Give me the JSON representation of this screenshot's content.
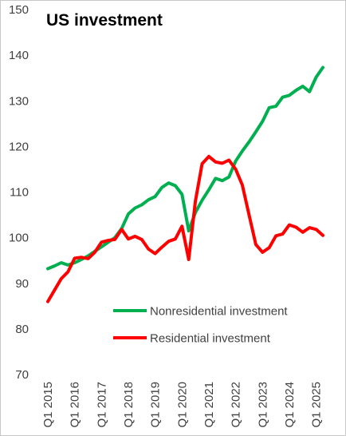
{
  "chart_data": {
    "type": "line",
    "title": "US investment",
    "xlabel": "",
    "ylabel": "",
    "ylim": [
      70,
      150
    ],
    "y_ticks": [
      70,
      80,
      90,
      100,
      110,
      120,
      130,
      140,
      150
    ],
    "grid": false,
    "legend_position": "lower-center",
    "x_tick_labels": [
      "Q1 2015",
      "Q1 2016",
      "Q1 2017",
      "Q1 2018",
      "Q1 2019",
      "Q1 2020",
      "Q1 2021",
      "Q1 2022",
      "Q1 2023",
      "Q1 2024",
      "Q1 2025"
    ],
    "x": [
      "Q1 2015",
      "Q2 2015",
      "Q3 2015",
      "Q4 2015",
      "Q1 2016",
      "Q2 2016",
      "Q3 2016",
      "Q4 2016",
      "Q1 2017",
      "Q2 2017",
      "Q3 2017",
      "Q4 2017",
      "Q1 2018",
      "Q2 2018",
      "Q3 2018",
      "Q4 2018",
      "Q1 2019",
      "Q2 2019",
      "Q3 2019",
      "Q4 2019",
      "Q1 2020",
      "Q2 2020",
      "Q3 2020",
      "Q4 2020",
      "Q1 2021",
      "Q2 2021",
      "Q3 2021",
      "Q4 2021",
      "Q1 2022",
      "Q2 2022",
      "Q3 2022",
      "Q4 2022",
      "Q1 2023",
      "Q2 2023",
      "Q3 2023",
      "Q4 2023",
      "Q1 2024",
      "Q2 2024",
      "Q3 2024",
      "Q4 2024",
      "Q1 2025",
      "Q2 2025"
    ],
    "series": [
      {
        "name": "Nonresidential investment",
        "color": "#00b050",
        "values": [
          93.2,
          93.8,
          94.5,
          94.0,
          94.5,
          95.2,
          96.0,
          97.0,
          98.0,
          99.0,
          100.0,
          102.0,
          105.2,
          106.5,
          107.2,
          108.3,
          109.0,
          111.0,
          112.0,
          111.4,
          109.5,
          101.5,
          105.5,
          108.2,
          110.5,
          113.0,
          112.5,
          113.3,
          116.8,
          119.0,
          121.0,
          123.2,
          125.5,
          128.5,
          128.8,
          130.8,
          131.2,
          132.3,
          133.2,
          132.0,
          135.2,
          137.3
        ]
      },
      {
        "name": "Residential investment",
        "color": "#ff0000",
        "values": [
          86.0,
          88.5,
          91.0,
          92.5,
          95.5,
          95.7,
          95.4,
          96.8,
          99.0,
          99.4,
          99.6,
          101.8,
          99.7,
          100.3,
          99.6,
          97.5,
          96.5,
          97.9,
          99.2,
          99.7,
          102.5,
          95.2,
          108.0,
          116.2,
          117.8,
          116.6,
          116.3,
          117.0,
          115.0,
          111.5,
          105.0,
          98.5,
          96.8,
          97.8,
          100.4,
          100.8,
          102.8,
          102.3,
          101.2,
          102.2,
          101.8,
          100.5
        ]
      }
    ]
  },
  "legend": {
    "items": [
      "Nonresidential investment",
      "Residential investment"
    ]
  }
}
